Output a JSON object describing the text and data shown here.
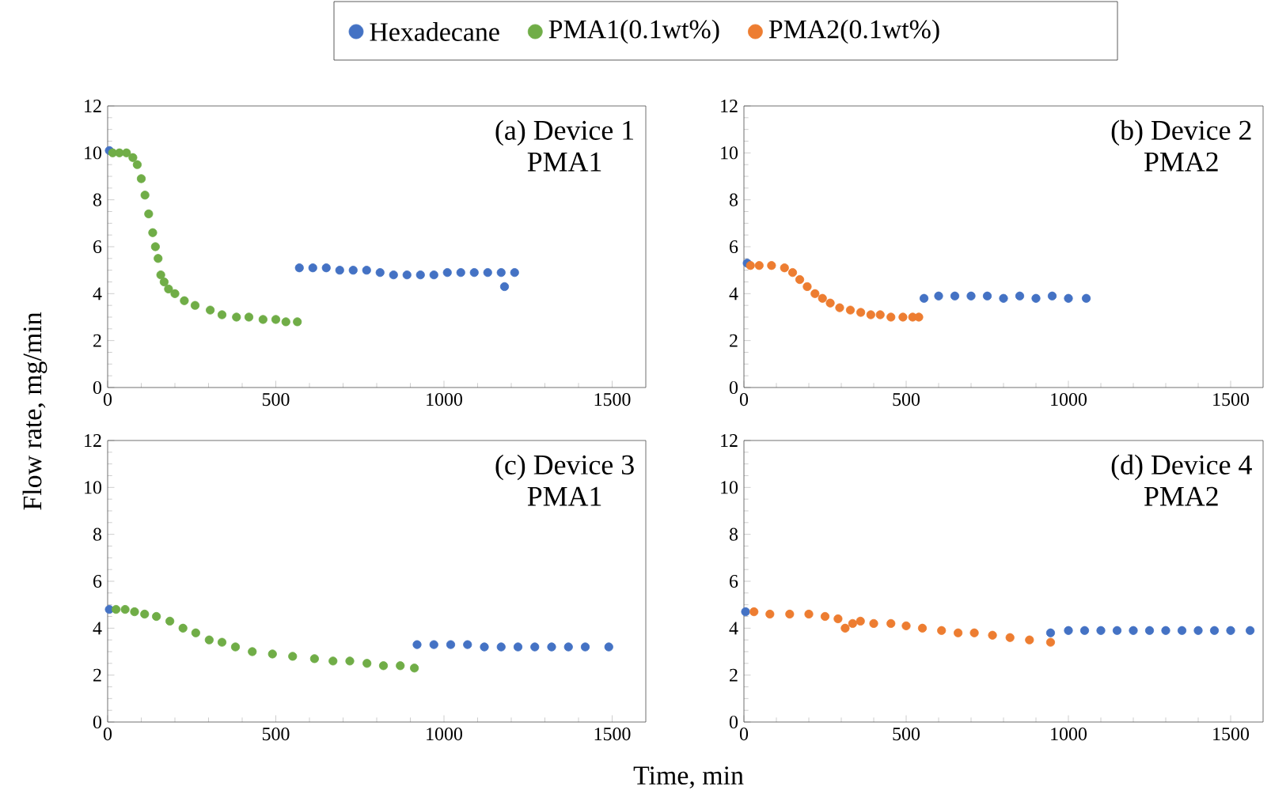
{
  "chart_data": [
    {
      "type": "scatter",
      "title": "(a) Device 1",
      "subtitle": "PMA1",
      "ylabel": "Flow rate, mg/min",
      "legend": "top",
      "marker": "circle",
      "grid": false,
      "xlim": [
        0,
        1600
      ],
      "xticks": [
        0,
        500,
        1000,
        1500
      ],
      "ylim": [
        0,
        12
      ],
      "yticks": [
        0,
        2,
        4,
        6,
        8,
        10,
        12
      ],
      "series": [
        {
          "name": "Hexadecane",
          "color": "#4472c4",
          "x": [
            5,
            570,
            610,
            650,
            690,
            730,
            770,
            810,
            850,
            890,
            930,
            970,
            1010,
            1050,
            1090,
            1130,
            1170,
            1180,
            1210
          ],
          "values": [
            10.1,
            5.1,
            5.1,
            5.1,
            5.0,
            5.0,
            5.0,
            4.9,
            4.8,
            4.8,
            4.8,
            4.8,
            4.9,
            4.9,
            4.9,
            4.9,
            4.9,
            4.3,
            4.9
          ]
        },
        {
          "name": "PMA1(0.1wt%)",
          "color": "#70ad47",
          "x": [
            15,
            35,
            56,
            75,
            88,
            100,
            111,
            122,
            134,
            142,
            150,
            158,
            168,
            181,
            200,
            228,
            260,
            305,
            340,
            383,
            420,
            462,
            500,
            530,
            564
          ],
          "values": [
            10.0,
            10.0,
            10.0,
            9.8,
            9.5,
            8.9,
            8.2,
            7.4,
            6.6,
            6.0,
            5.5,
            4.8,
            4.5,
            4.2,
            4.0,
            3.7,
            3.5,
            3.3,
            3.1,
            3.0,
            3.0,
            2.9,
            2.9,
            2.8,
            2.8
          ]
        }
      ]
    },
    {
      "type": "scatter",
      "title": "(b) Device 2",
      "subtitle": "PMA2",
      "legend": "top",
      "marker": "circle",
      "grid": false,
      "xlim": [
        0,
        1600
      ],
      "xticks": [
        0,
        500,
        1000,
        1500
      ],
      "ylim": [
        0,
        12
      ],
      "yticks": [
        0,
        2,
        4,
        6,
        8,
        10,
        12
      ],
      "series": [
        {
          "color": "#4472c4",
          "x": [
            10,
            555,
            600,
            650,
            700,
            750,
            800,
            850,
            900,
            950,
            1000,
            1055
          ],
          "values": [
            5.3,
            3.8,
            3.9,
            3.9,
            3.9,
            3.9,
            3.8,
            3.9,
            3.8,
            3.9,
            3.8,
            3.8
          ]
        },
        {
          "name": "PMA2(0.1wt%)",
          "color": "#ed7d31",
          "x": [
            20,
            47,
            85,
            125,
            150,
            172,
            195,
            219,
            242,
            266,
            295,
            328,
            360,
            391,
            420,
            453,
            490,
            520,
            539
          ],
          "values": [
            5.2,
            5.2,
            5.2,
            5.1,
            4.9,
            4.6,
            4.3,
            4.0,
            3.8,
            3.6,
            3.4,
            3.3,
            3.2,
            3.1,
            3.1,
            3.0,
            3.0,
            3.0,
            3.0
          ]
        }
      ]
    },
    {
      "type": "scatter",
      "title": "(c) Device 3",
      "subtitle": "PMA1",
      "xlabel": "Time, min",
      "marker": "circle",
      "grid": false,
      "xlim": [
        0,
        1600
      ],
      "xticks": [
        0,
        500,
        1000,
        1500
      ],
      "ylim": [
        0,
        12
      ],
      "yticks": [
        0,
        2,
        4,
        6,
        8,
        10,
        12
      ],
      "series": [
        {
          "color": "#4472c4",
          "x": [
            5,
            920,
            970,
            1020,
            1070,
            1120,
            1170,
            1220,
            1270,
            1320,
            1370,
            1420,
            1490
          ],
          "values": [
            4.8,
            3.3,
            3.3,
            3.3,
            3.3,
            3.2,
            3.2,
            3.2,
            3.2,
            3.2,
            3.2,
            3.2,
            3.2
          ]
        },
        {
          "color": "#70ad47",
          "x": [
            25,
            52,
            80,
            110,
            145,
            185,
            224,
            262,
            302,
            340,
            380,
            430,
            490,
            550,
            615,
            670,
            720,
            771,
            820,
            870,
            912
          ],
          "values": [
            4.8,
            4.8,
            4.7,
            4.6,
            4.5,
            4.3,
            4.0,
            3.8,
            3.5,
            3.4,
            3.2,
            3.0,
            2.9,
            2.8,
            2.7,
            2.6,
            2.6,
            2.5,
            2.4,
            2.4,
            2.3
          ]
        }
      ]
    },
    {
      "type": "scatter",
      "title": "(d) Device 4",
      "subtitle": "PMA2",
      "marker": "circle",
      "grid": false,
      "xlim": [
        0,
        1600
      ],
      "xticks": [
        0,
        500,
        1000,
        1500
      ],
      "ylim": [
        0,
        12
      ],
      "yticks": [
        0,
        2,
        4,
        6,
        8,
        10,
        12
      ],
      "series": [
        {
          "color": "#4472c4",
          "x": [
            5,
            945,
            1000,
            1050,
            1100,
            1150,
            1200,
            1250,
            1300,
            1350,
            1400,
            1450,
            1500,
            1560
          ],
          "values": [
            4.7,
            3.8,
            3.9,
            3.9,
            3.9,
            3.9,
            3.9,
            3.9,
            3.9,
            3.9,
            3.9,
            3.9,
            3.9,
            3.9
          ]
        },
        {
          "color": "#ed7d31",
          "x": [
            31,
            80,
            141,
            200,
            250,
            290,
            312,
            335,
            359,
            400,
            453,
            500,
            550,
            609,
            660,
            710,
            766,
            820,
            880,
            945
          ],
          "values": [
            4.7,
            4.6,
            4.6,
            4.6,
            4.5,
            4.4,
            4.0,
            4.2,
            4.3,
            4.2,
            4.2,
            4.1,
            4.0,
            3.9,
            3.8,
            3.8,
            3.7,
            3.6,
            3.5,
            3.4
          ]
        }
      ]
    }
  ]
}
